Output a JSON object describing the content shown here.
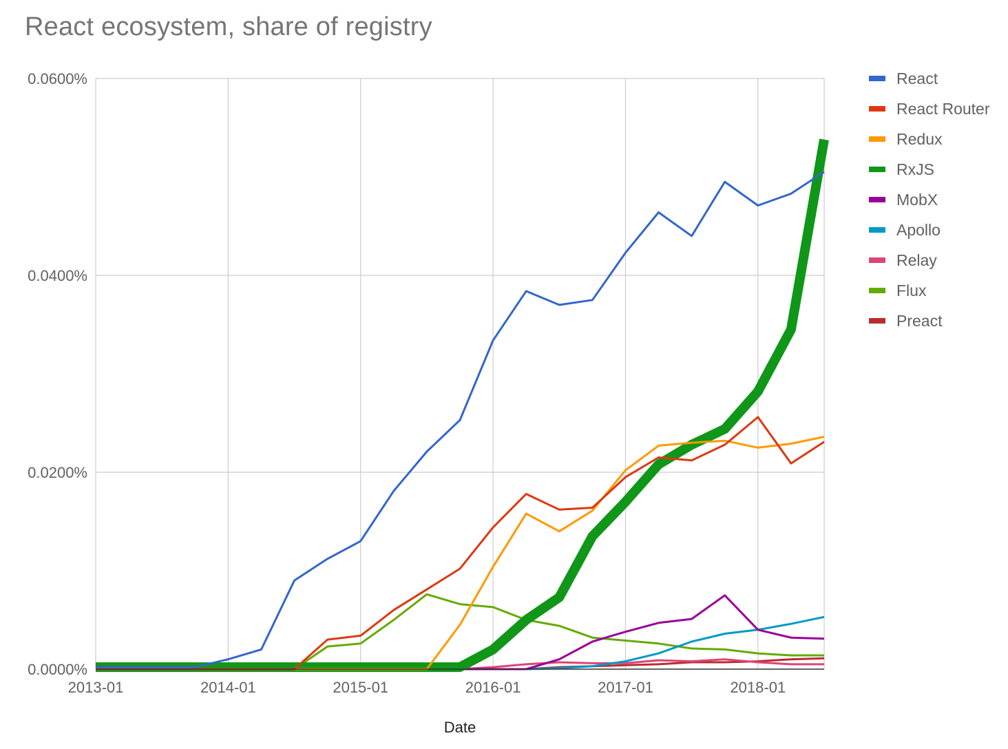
{
  "chart_data": {
    "type": "line",
    "title": "React ecosystem, share of registry",
    "xlabel": "Date",
    "ylabel": "",
    "ylim": [
      0,
      0.06
    ],
    "y_ticks": [
      {
        "value": 0,
        "label": "0.0000%"
      },
      {
        "value": 0.02,
        "label": "0.0200%"
      },
      {
        "value": 0.04,
        "label": "0.0400%"
      },
      {
        "value": 0.06,
        "label": "0.0600%"
      }
    ],
    "x_range": [
      "2013-01",
      "2018-07"
    ],
    "x_ticks": [
      "2013-01",
      "2014-01",
      "2015-01",
      "2016-01",
      "2017-01",
      "2018-01"
    ],
    "x": [
      "2013-01",
      "2013-04",
      "2013-07",
      "2013-10",
      "2014-01",
      "2014-04",
      "2014-07",
      "2014-10",
      "2015-01",
      "2015-04",
      "2015-07",
      "2015-10",
      "2016-01",
      "2016-04",
      "2016-07",
      "2016-10",
      "2017-01",
      "2017-04",
      "2017-07",
      "2017-10",
      "2018-01",
      "2018-04",
      "2018-07"
    ],
    "grid": true,
    "legend_position": "right",
    "series": [
      {
        "name": "React",
        "color": "#3366cc",
        "width": 3,
        "values": [
          0.0002,
          0.0002,
          0.0002,
          0.0002,
          0.001,
          0.002,
          0.009,
          0.0112,
          0.013,
          0.0181,
          0.0221,
          0.0253,
          0.0334,
          0.0384,
          0.037,
          0.0375,
          0.0423,
          0.0464,
          0.044,
          0.0495,
          0.0471,
          0.0483,
          0.0505
        ]
      },
      {
        "name": "React Router",
        "color": "#dc3912",
        "width": 3,
        "values": [
          0,
          0,
          0,
          0,
          0,
          0,
          0,
          0.003,
          0.0034,
          0.006,
          0.0081,
          0.0102,
          0.0144,
          0.0178,
          0.0162,
          0.0164,
          0.0195,
          0.0215,
          0.0212,
          0.0228,
          0.0256,
          0.0209,
          0.0231
        ]
      },
      {
        "name": "Redux",
        "color": "#ff9900",
        "width": 3,
        "values": [
          0,
          0,
          0,
          0,
          0,
          0,
          0,
          0,
          0,
          0,
          0,
          0.0045,
          0.0104,
          0.0158,
          0.014,
          0.0161,
          0.0202,
          0.0227,
          0.023,
          0.0232,
          0.0225,
          0.0229,
          0.0236
        ]
      },
      {
        "name": "RxJS",
        "color": "#109618",
        "width": 14,
        "values": [
          0.0002,
          0.0002,
          0.0002,
          0.0002,
          0.0002,
          0.0002,
          0.0002,
          0.0002,
          0.0002,
          0.0002,
          0.0002,
          0.0002,
          0.002,
          0.005,
          0.0073,
          0.0135,
          0.017,
          0.0208,
          0.0228,
          0.0244,
          0.0282,
          0.0345,
          0.0538
        ]
      },
      {
        "name": "MobX",
        "color": "#990099",
        "width": 3,
        "values": [
          0,
          0,
          0,
          0,
          0,
          0,
          0,
          0,
          0,
          0,
          0,
          0,
          0,
          0,
          0.001,
          0.0028,
          0.0038,
          0.0047,
          0.0051,
          0.0075,
          0.004,
          0.0032,
          0.0031
        ]
      },
      {
        "name": "Apollo",
        "color": "#0099c6",
        "width": 3,
        "values": [
          0,
          0,
          0,
          0,
          0,
          0,
          0,
          0,
          0,
          0,
          0,
          0,
          0,
          0,
          0.0001,
          0.0003,
          0.0008,
          0.0016,
          0.0028,
          0.0036,
          0.004,
          0.0046,
          0.0053
        ]
      },
      {
        "name": "Relay",
        "color": "#dd4477",
        "width": 3,
        "values": [
          0,
          0,
          0,
          0,
          0,
          0,
          0,
          0,
          0,
          0,
          0,
          0,
          0.0002,
          0.0005,
          0.0007,
          0.0006,
          0.0006,
          0.0009,
          0.0008,
          0.001,
          0.0007,
          0.0005,
          0.0005
        ]
      },
      {
        "name": "Flux",
        "color": "#66aa00",
        "width": 3,
        "values": [
          0,
          0,
          0,
          0,
          0,
          0,
          0,
          0.0023,
          0.0026,
          0.005,
          0.0076,
          0.0066,
          0.0063,
          0.005,
          0.0044,
          0.0032,
          0.0029,
          0.0026,
          0.0021,
          0.002,
          0.0016,
          0.0014,
          0.0014
        ]
      },
      {
        "name": "Preact",
        "color": "#b82e2e",
        "width": 3,
        "values": [
          0,
          0,
          0,
          0,
          0,
          0,
          0,
          0,
          0,
          0,
          0,
          0,
          0,
          0,
          0.0002,
          0.0003,
          0.0004,
          0.0005,
          0.0007,
          0.0007,
          0.0008,
          0.001,
          0.0011
        ]
      }
    ]
  }
}
